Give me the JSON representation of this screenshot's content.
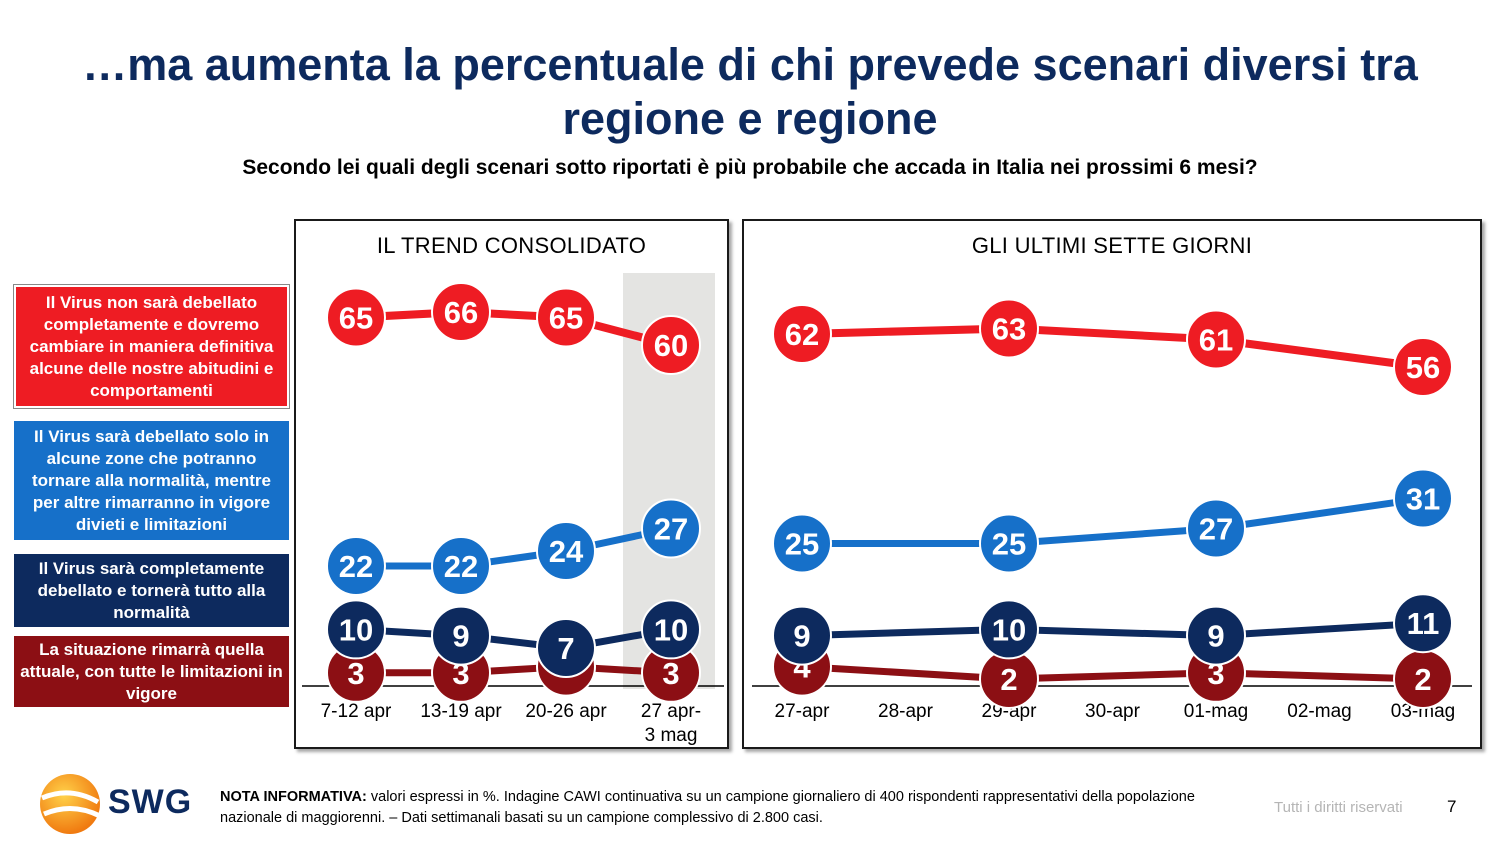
{
  "title": "…ma aumenta la percentuale di chi prevede scenari diversi tra regione e regione",
  "subtitle": "Secondo lei quali degli scenari sotto riportati è più probabile che accada in Italia nei prossimi 6 mesi?",
  "legend": [
    {
      "label": "Il Virus non sarà debellato completamente e dovremo cambiare in maniera definitiva alcune delle nostre abitudini e comportamenti",
      "color": "#ee1c23"
    },
    {
      "label": "Il Virus sarà debellato solo in alcune zone che potranno tornare alla normalità, mentre per altre rimarranno in vigore divieti e limitazioni",
      "color": "#1670c9"
    },
    {
      "label": "Il Virus sarà completamente debellato e tornerà tutto alla normalità",
      "color": "#0d2a5e"
    },
    {
      "label": "La situazione rimarrà quella attuale, con tutte le limitazioni in vigore",
      "color": "#8c0f14"
    }
  ],
  "chart_data": [
    {
      "type": "line",
      "title": "IL TREND CONSOLIDATO",
      "categories": [
        "7-12 apr",
        "13-19 apr",
        "20-26 apr",
        "27 apr-3 mag"
      ],
      "highlight_category": "27 apr-3 mag",
      "ylim": [
        0,
        70
      ],
      "series": [
        {
          "values": [
            65,
            66,
            65,
            60
          ],
          "color": "#ee1c23"
        },
        {
          "values": [
            22,
            22,
            24,
            27
          ],
          "color": "#1670c9"
        },
        {
          "values": [
            10,
            9,
            7,
            10
          ],
          "color": "#0d2a5e"
        },
        {
          "values": [
            3,
            3,
            4,
            3
          ],
          "color": "#8c0f14"
        }
      ]
    },
    {
      "type": "line",
      "title": "GLI ULTIMI SETTE GIORNI",
      "categories": [
        "27-apr",
        "28-apr",
        "29-apr",
        "30-apr",
        "01-mag",
        "02-mag",
        "03-mag"
      ],
      "ylim": [
        0,
        70
      ],
      "series": [
        {
          "values": [
            62,
            null,
            63,
            null,
            61,
            null,
            56
          ],
          "color": "#ee1c23"
        },
        {
          "values": [
            25,
            null,
            25,
            null,
            27,
            null,
            31
          ],
          "color": "#1670c9"
        },
        {
          "values": [
            9,
            null,
            10,
            null,
            9,
            null,
            11
          ],
          "color": "#0d2a5e"
        },
        {
          "values": [
            4,
            null,
            2,
            null,
            3,
            null,
            2
          ],
          "color": "#8c0f14"
        }
      ]
    }
  ],
  "footer": {
    "note_label": "NOTA INFORMATIVA:",
    "note_text": " valori espressi in %. Indagine CAWI continuativa su un campione giornaliero di 400 rispondenti rappresentativi della popolazione nazionale di maggiorenni. – Dati settimanali basati su un campione complessivo di 2.800 casi.",
    "rights": "Tutti i diritti riservati",
    "page": "7",
    "logo": "SWG"
  }
}
